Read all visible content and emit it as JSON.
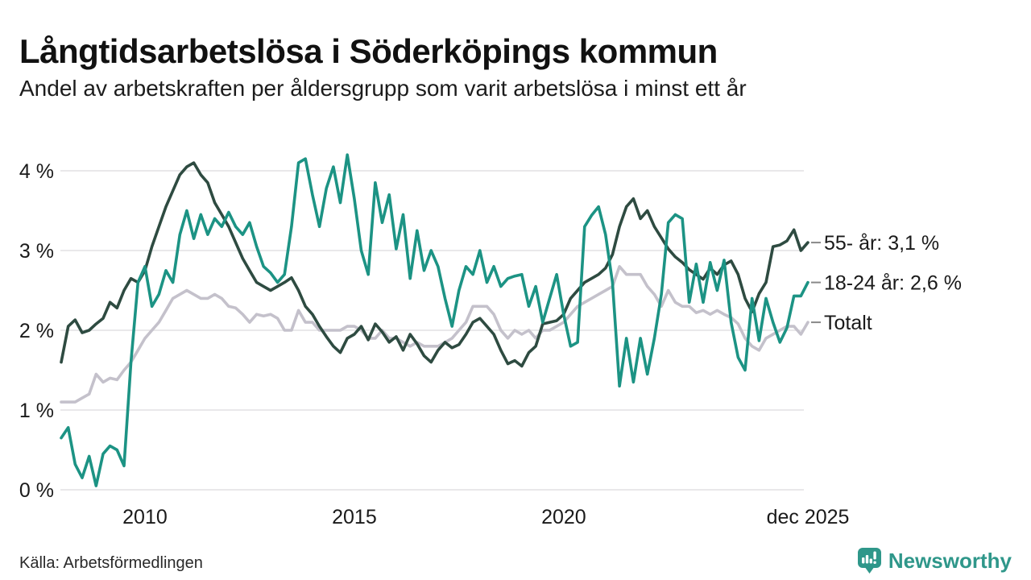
{
  "header": {
    "title": "Långtidsarbetslösa i Söderköpings kommun",
    "subtitle": "Andel av arbetskraften per åldersgrupp som varit arbetslösa i minst ett år"
  },
  "footer": {
    "source": "Källa: Arbetsförmedlingen",
    "brand": "Newsworthy"
  },
  "colors": {
    "grid": "#e9e8ea",
    "axis_text": "#1a1a1a",
    "series_55": "#2e4b41",
    "series_18_24": "#1c9384",
    "series_total": "#c4c1cb",
    "brand_teal": "#2f978a",
    "legend_tick": "#888888"
  },
  "chart_data": {
    "type": "line",
    "title": "Långtidsarbetslösa i Söderköpings kommun",
    "subtitle": "Andel av arbetskraften per åldersgrupp som varit arbetslösa i minst ett år",
    "unit": "%",
    "grid": "horizontal",
    "legend_position": "right-of-line-ends",
    "x_start_year": 2008.0,
    "x_end_year": 2025.83,
    "x_interval_months": 2,
    "ylim": [
      0,
      4.45
    ],
    "y_ticks": [
      {
        "value": 0,
        "label": "0 %"
      },
      {
        "value": 1,
        "label": "1 %"
      },
      {
        "value": 2,
        "label": "2 %"
      },
      {
        "value": 3,
        "label": "3 %"
      },
      {
        "value": 4,
        "label": "4 %"
      }
    ],
    "x_ticks": [
      {
        "t": 2010,
        "label": "2010"
      },
      {
        "t": 2015,
        "label": "2015"
      },
      {
        "t": 2020,
        "label": "2020"
      },
      {
        "t": 2025.83,
        "label": "dec 2025"
      }
    ],
    "series": [
      {
        "id": "total",
        "name": "Totalt",
        "legend_label": "Totalt",
        "color": "#c4c1cb",
        "final_value": 2.1,
        "values": [
          1.1,
          1.1,
          1.1,
          1.15,
          1.2,
          1.45,
          1.35,
          1.4,
          1.38,
          1.5,
          1.6,
          1.75,
          1.9,
          2.0,
          2.1,
          2.25,
          2.4,
          2.45,
          2.5,
          2.45,
          2.4,
          2.4,
          2.45,
          2.4,
          2.3,
          2.28,
          2.2,
          2.1,
          2.2,
          2.18,
          2.2,
          2.15,
          2.0,
          2.0,
          2.25,
          2.1,
          2.1,
          2.0,
          2.0,
          2.0,
          2.0,
          2.05,
          2.05,
          2.0,
          1.9,
          1.9,
          2.0,
          1.9,
          1.9,
          1.85,
          1.8,
          1.85,
          1.8,
          1.8,
          1.8,
          1.85,
          1.9,
          2.0,
          2.1,
          2.3,
          2.3,
          2.3,
          2.2,
          2.0,
          1.9,
          2.0,
          1.95,
          2.0,
          1.9,
          2.0,
          2.0,
          2.05,
          2.1,
          2.2,
          2.3,
          2.35,
          2.4,
          2.45,
          2.5,
          2.55,
          2.8,
          2.7,
          2.7,
          2.7,
          2.55,
          2.45,
          2.3,
          2.5,
          2.35,
          2.3,
          2.3,
          2.22,
          2.25,
          2.2,
          2.25,
          2.2,
          2.16,
          2.08,
          1.9,
          1.8,
          1.75,
          1.9,
          1.95,
          2.0,
          2.05,
          2.05,
          1.95,
          2.1
        ]
      },
      {
        "id": "55",
        "name": "55- år",
        "legend_label": "55- år: 3,1 %",
        "color": "#2e4b41",
        "final_value": 3.1,
        "values": [
          1.6,
          2.05,
          2.13,
          1.97,
          2.0,
          2.08,
          2.15,
          2.35,
          2.28,
          2.5,
          2.65,
          2.6,
          2.75,
          3.05,
          3.3,
          3.55,
          3.75,
          3.95,
          4.05,
          4.1,
          3.95,
          3.85,
          3.6,
          3.45,
          3.3,
          3.1,
          2.9,
          2.75,
          2.6,
          2.55,
          2.5,
          2.55,
          2.6,
          2.66,
          2.5,
          2.3,
          2.2,
          2.05,
          1.92,
          1.8,
          1.72,
          1.9,
          1.95,
          2.05,
          1.88,
          2.08,
          1.98,
          1.85,
          1.92,
          1.75,
          1.95,
          1.83,
          1.68,
          1.6,
          1.75,
          1.85,
          1.78,
          1.82,
          1.95,
          2.1,
          2.15,
          2.05,
          1.95,
          1.75,
          1.58,
          1.62,
          1.55,
          1.72,
          1.8,
          2.08,
          2.1,
          2.12,
          2.2,
          2.4,
          2.5,
          2.6,
          2.65,
          2.7,
          2.78,
          2.95,
          3.3,
          3.55,
          3.65,
          3.4,
          3.5,
          3.3,
          3.16,
          3.02,
          2.92,
          2.85,
          2.76,
          2.7,
          2.64,
          2.78,
          2.7,
          2.82,
          2.87,
          2.7,
          2.4,
          2.23,
          2.46,
          2.6,
          3.05,
          3.07,
          3.12,
          3.26,
          3.0,
          3.1
        ]
      },
      {
        "id": "18-24",
        "name": "18-24 år",
        "legend_label": "18-24 år: 2,6 %",
        "color": "#1c9384",
        "final_value": 2.6,
        "values": [
          0.65,
          0.78,
          0.32,
          0.15,
          0.42,
          0.05,
          0.45,
          0.55,
          0.5,
          0.3,
          1.6,
          2.6,
          2.8,
          2.3,
          2.45,
          2.75,
          2.6,
          3.2,
          3.5,
          3.15,
          3.45,
          3.2,
          3.4,
          3.3,
          3.48,
          3.3,
          3.2,
          3.35,
          3.05,
          2.8,
          2.72,
          2.6,
          2.7,
          3.3,
          4.1,
          4.15,
          3.7,
          3.3,
          3.78,
          4.05,
          3.6,
          4.2,
          3.65,
          3.0,
          2.7,
          3.85,
          3.35,
          3.7,
          3.02,
          3.45,
          2.65,
          3.25,
          2.75,
          3.0,
          2.8,
          2.4,
          2.05,
          2.5,
          2.8,
          2.7,
          3.0,
          2.6,
          2.8,
          2.55,
          2.65,
          2.68,
          2.7,
          2.3,
          2.55,
          2.1,
          2.4,
          2.7,
          2.2,
          1.8,
          1.85,
          3.3,
          3.44,
          3.55,
          3.2,
          2.6,
          1.3,
          1.9,
          1.35,
          1.9,
          1.45,
          1.9,
          2.45,
          3.35,
          3.45,
          3.4,
          2.35,
          2.83,
          2.35,
          2.85,
          2.5,
          2.88,
          2.1,
          1.66,
          1.5,
          2.4,
          1.87,
          2.4,
          2.1,
          1.85,
          2.03,
          2.43,
          2.43,
          2.6
        ]
      }
    ]
  }
}
